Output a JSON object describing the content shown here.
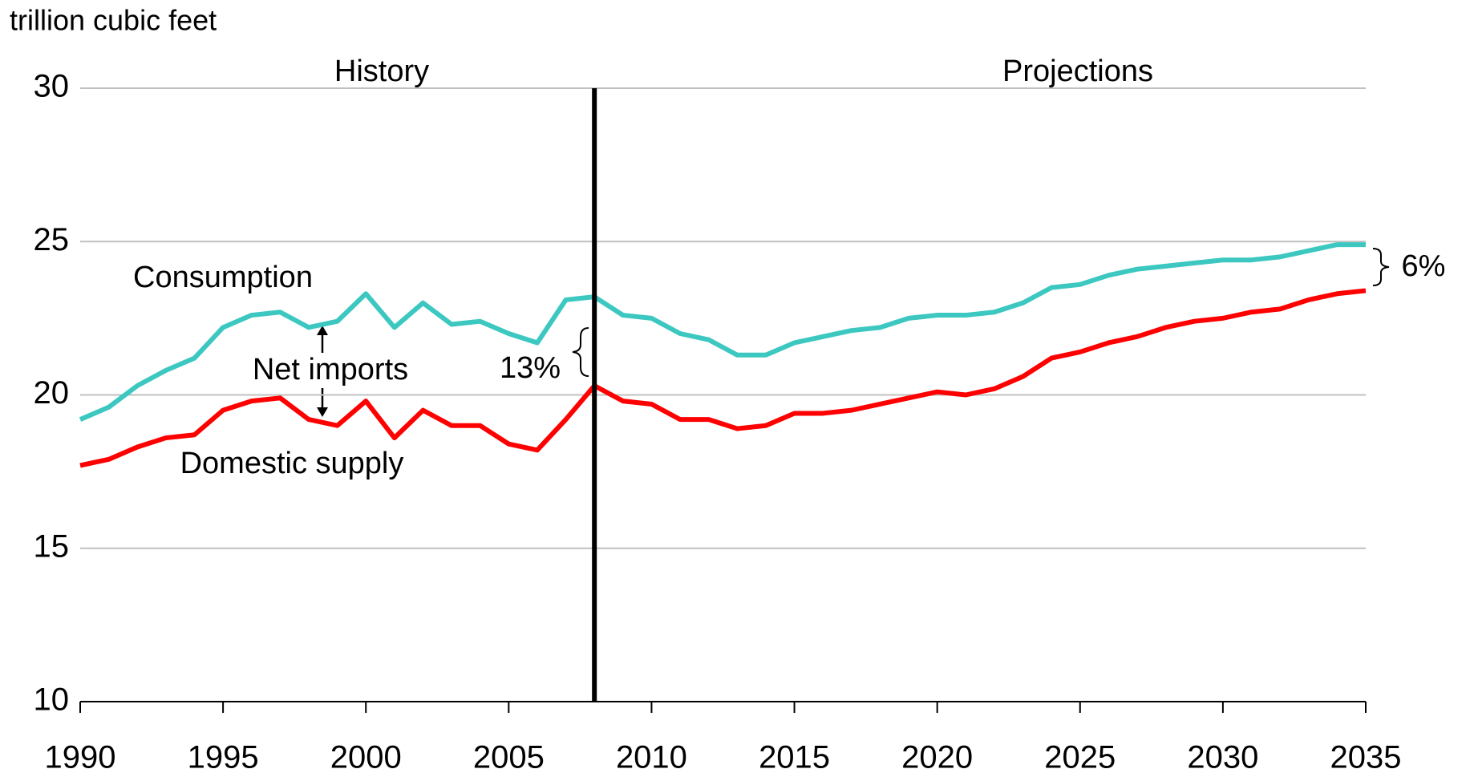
{
  "chart_data": {
    "type": "line",
    "ylabel": "trillion cubic feet",
    "x": [
      1990,
      1991,
      1992,
      1993,
      1994,
      1995,
      1996,
      1997,
      1998,
      1999,
      2000,
      2001,
      2002,
      2003,
      2004,
      2005,
      2006,
      2007,
      2008,
      2009,
      2010,
      2011,
      2012,
      2013,
      2014,
      2015,
      2016,
      2017,
      2018,
      2019,
      2020,
      2021,
      2022,
      2023,
      2024,
      2025,
      2026,
      2027,
      2028,
      2029,
      2030,
      2031,
      2032,
      2033,
      2034,
      2035
    ],
    "series": [
      {
        "name": "Consumption",
        "color": "#3cc8c0",
        "values": [
          19.2,
          19.6,
          20.3,
          20.8,
          21.2,
          22.2,
          22.6,
          22.7,
          22.2,
          22.4,
          23.3,
          22.2,
          23.0,
          22.3,
          22.4,
          22.0,
          21.7,
          23.1,
          23.2,
          22.6,
          22.5,
          22.0,
          21.8,
          21.3,
          21.3,
          21.7,
          21.9,
          22.1,
          22.2,
          22.5,
          22.6,
          22.6,
          22.7,
          23.0,
          23.5,
          23.6,
          23.9,
          24.1,
          24.2,
          24.3,
          24.4,
          24.4,
          24.5,
          24.7,
          24.9,
          24.9
        ]
      },
      {
        "name": "Domestic supply",
        "color": "#ff0000",
        "values": [
          17.7,
          17.9,
          18.3,
          18.6,
          18.7,
          19.5,
          19.8,
          19.9,
          19.2,
          19.0,
          19.8,
          18.6,
          19.5,
          19.0,
          19.0,
          18.4,
          18.2,
          19.2,
          20.3,
          19.8,
          19.7,
          19.2,
          19.2,
          18.9,
          19.0,
          19.4,
          19.4,
          19.5,
          19.7,
          19.9,
          20.1,
          20.0,
          20.2,
          20.6,
          21.2,
          21.4,
          21.7,
          21.9,
          22.2,
          22.4,
          22.5,
          22.7,
          22.8,
          23.1,
          23.3,
          23.4
        ]
      }
    ],
    "xlim": [
      1990,
      2035
    ],
    "xticks": [
      1990,
      1995,
      2000,
      2005,
      2010,
      2015,
      2020,
      2025,
      2030,
      2035
    ],
    "ylim": [
      10,
      30
    ],
    "yticks": [
      10,
      15,
      20,
      25,
      30
    ],
    "grid": true,
    "divider": 2008,
    "annotations": {
      "history": "History",
      "projections": "Projections",
      "net_imports": "Net imports",
      "gap_2008": "13%",
      "gap_2035": "6%"
    }
  }
}
